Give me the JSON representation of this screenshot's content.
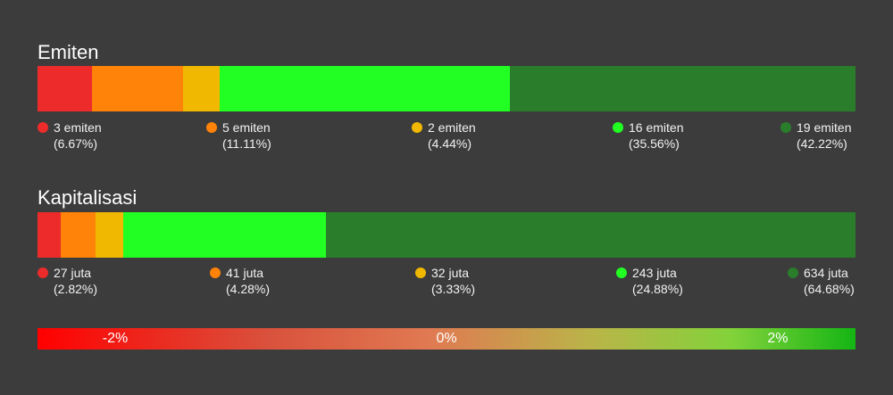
{
  "chart_data": [
    {
      "type": "bar",
      "title": "Emiten",
      "categories": [
        "3 emiten",
        "5 emiten",
        "2 emiten",
        "16 emiten",
        "19 emiten"
      ],
      "values": [
        3,
        5,
        2,
        16,
        19
      ],
      "percent_labels": [
        "(6.67%)",
        "(11.11%)",
        "(4.44%)",
        "(35.56%)",
        "(42.22%)"
      ],
      "percents": [
        6.67,
        11.11,
        4.44,
        35.56,
        42.22
      ],
      "colors": [
        "#ee2b2b",
        "#ff8308",
        "#f0b800",
        "#22ff22",
        "#2a7d2a"
      ]
    },
    {
      "type": "bar",
      "title": "Kapitalisasi",
      "categories": [
        "27 juta",
        "41 juta",
        "32 juta",
        "243 juta",
        "634 juta"
      ],
      "values": [
        27,
        41,
        32,
        243,
        634
      ],
      "percent_labels": [
        "(2.82%)",
        "(4.28%)",
        "(3.33%)",
        "(24.88%)",
        "(64.68%)"
      ],
      "percents": [
        2.82,
        4.28,
        3.33,
        24.88,
        64.68
      ],
      "colors": [
        "#ee2b2b",
        "#ff8308",
        "#f0b800",
        "#22ff22",
        "#2a7d2a"
      ]
    }
  ],
  "scale": {
    "labels": [
      "-2%",
      "0%",
      "2%"
    ],
    "colors": [
      "#ff0000",
      "#14b514"
    ]
  }
}
